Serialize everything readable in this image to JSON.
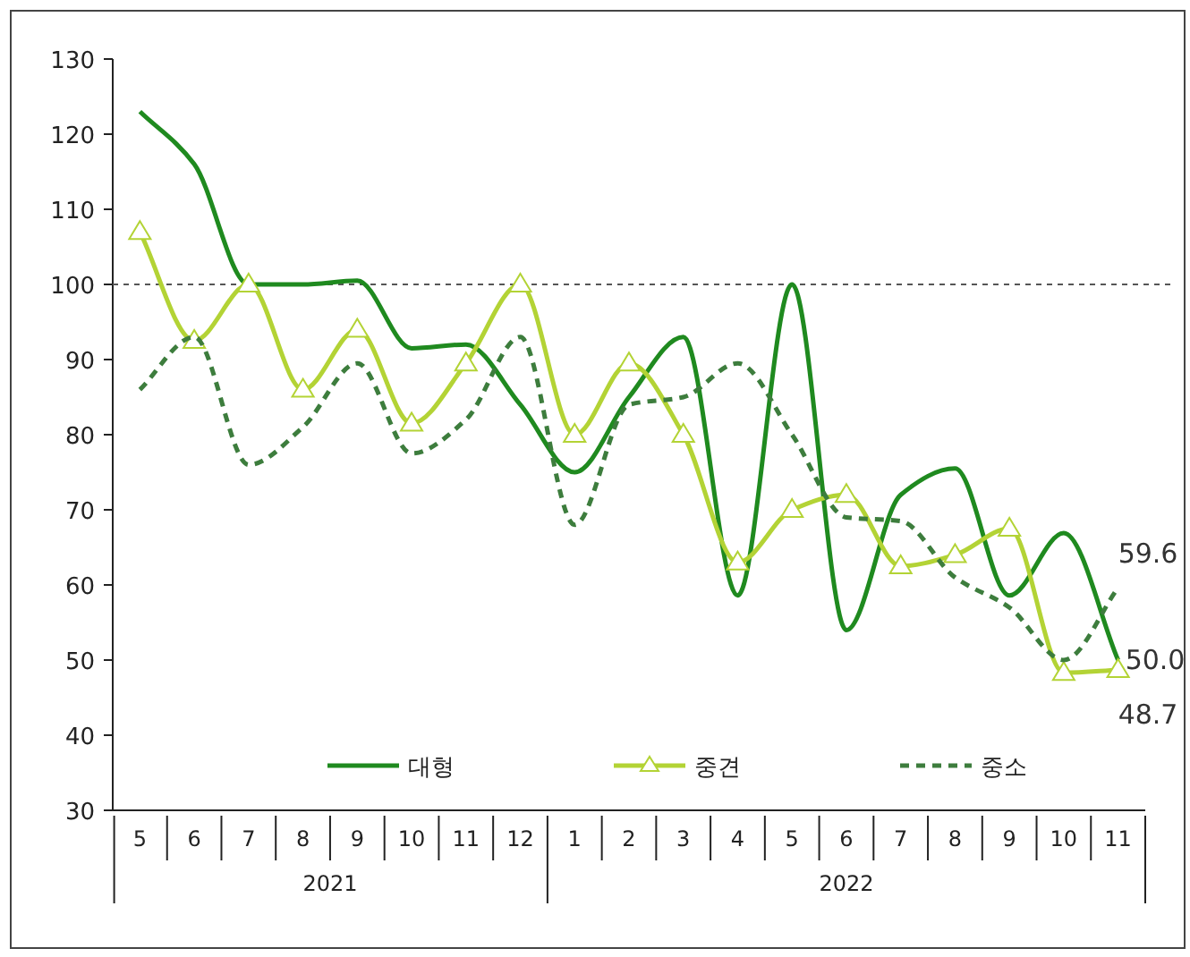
{
  "chart_data": {
    "type": "line",
    "categories": [
      "5",
      "6",
      "7",
      "8",
      "9",
      "10",
      "11",
      "12",
      "1",
      "2",
      "3",
      "4",
      "5",
      "6",
      "7",
      "8",
      "9",
      "10",
      "11"
    ],
    "series": [
      {
        "name": "대형",
        "color": "#1f8a1f",
        "line_style": "solid",
        "marker": "none",
        "values": [
          123,
          116,
          100,
          100,
          100.5,
          91.5,
          92,
          84,
          75,
          85,
          93,
          58.6,
          100,
          54,
          72,
          75.5,
          58.6,
          66.9,
          50.0
        ],
        "value_labels": [
          null,
          null,
          null,
          null,
          null,
          null,
          null,
          null,
          null,
          null,
          null,
          null,
          null,
          null,
          null,
          null,
          null,
          null,
          "50.0"
        ]
      },
      {
        "name": "중견",
        "color": "#b3d335",
        "line_style": "solid",
        "marker": "triangle",
        "values": [
          107,
          92.5,
          100,
          86,
          94,
          81.5,
          89.5,
          100,
          80,
          89.5,
          80,
          63,
          70,
          72,
          62.5,
          64,
          67.5,
          48.3,
          48.7
        ],
        "value_labels": [
          null,
          null,
          null,
          null,
          null,
          null,
          null,
          null,
          null,
          null,
          null,
          null,
          null,
          null,
          null,
          null,
          null,
          null,
          "48.7"
        ]
      },
      {
        "name": "중소",
        "color": "#3d7d3d",
        "line_style": "dashed",
        "marker": "none",
        "values": [
          86,
          93,
          76,
          81,
          89.5,
          77.5,
          82,
          93,
          68,
          84,
          85,
          89.5,
          80,
          69,
          68.5,
          61,
          57,
          50,
          59.6
        ],
        "value_labels": [
          null,
          null,
          null,
          null,
          null,
          null,
          null,
          null,
          null,
          null,
          null,
          null,
          null,
          null,
          null,
          null,
          null,
          null,
          "59.6"
        ]
      }
    ],
    "annotations": [
      "2021",
      "2022"
    ],
    "ylim": [
      30,
      130
    ],
    "yticks": [
      30,
      40,
      50,
      60,
      70,
      80,
      90,
      100,
      110,
      120,
      130
    ],
    "ref_lines": [
      {
        "axis": "y",
        "value": 100,
        "color": "#555555",
        "line_style": "dashed"
      }
    ],
    "grid": false,
    "legend": "bottom"
  }
}
